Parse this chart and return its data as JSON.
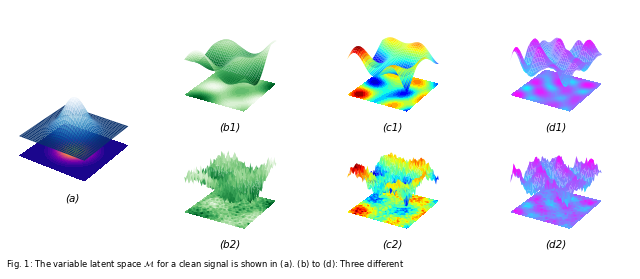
{
  "labels": {
    "a": "(a)",
    "b1": "(b1)",
    "c1": "(c1)",
    "d1": "(d1)",
    "b2": "(b2)",
    "c2": "(c2)",
    "d2": "(d2)"
  },
  "background_color": "#ffffff",
  "label_fontsize": 7.5,
  "caption_fontsize": 6.0,
  "caption": "Fig. 1: The variable latent space M for a clean signal is shown in (a). (b) to (d): Three different",
  "grid_size": 35,
  "noise_scale_b2": 0.25,
  "noise_scale_c2": 0.35,
  "noise_scale_d2": 0.3,
  "elev": 25,
  "azim": -60,
  "elev_a": 30,
  "azim_a": -55
}
